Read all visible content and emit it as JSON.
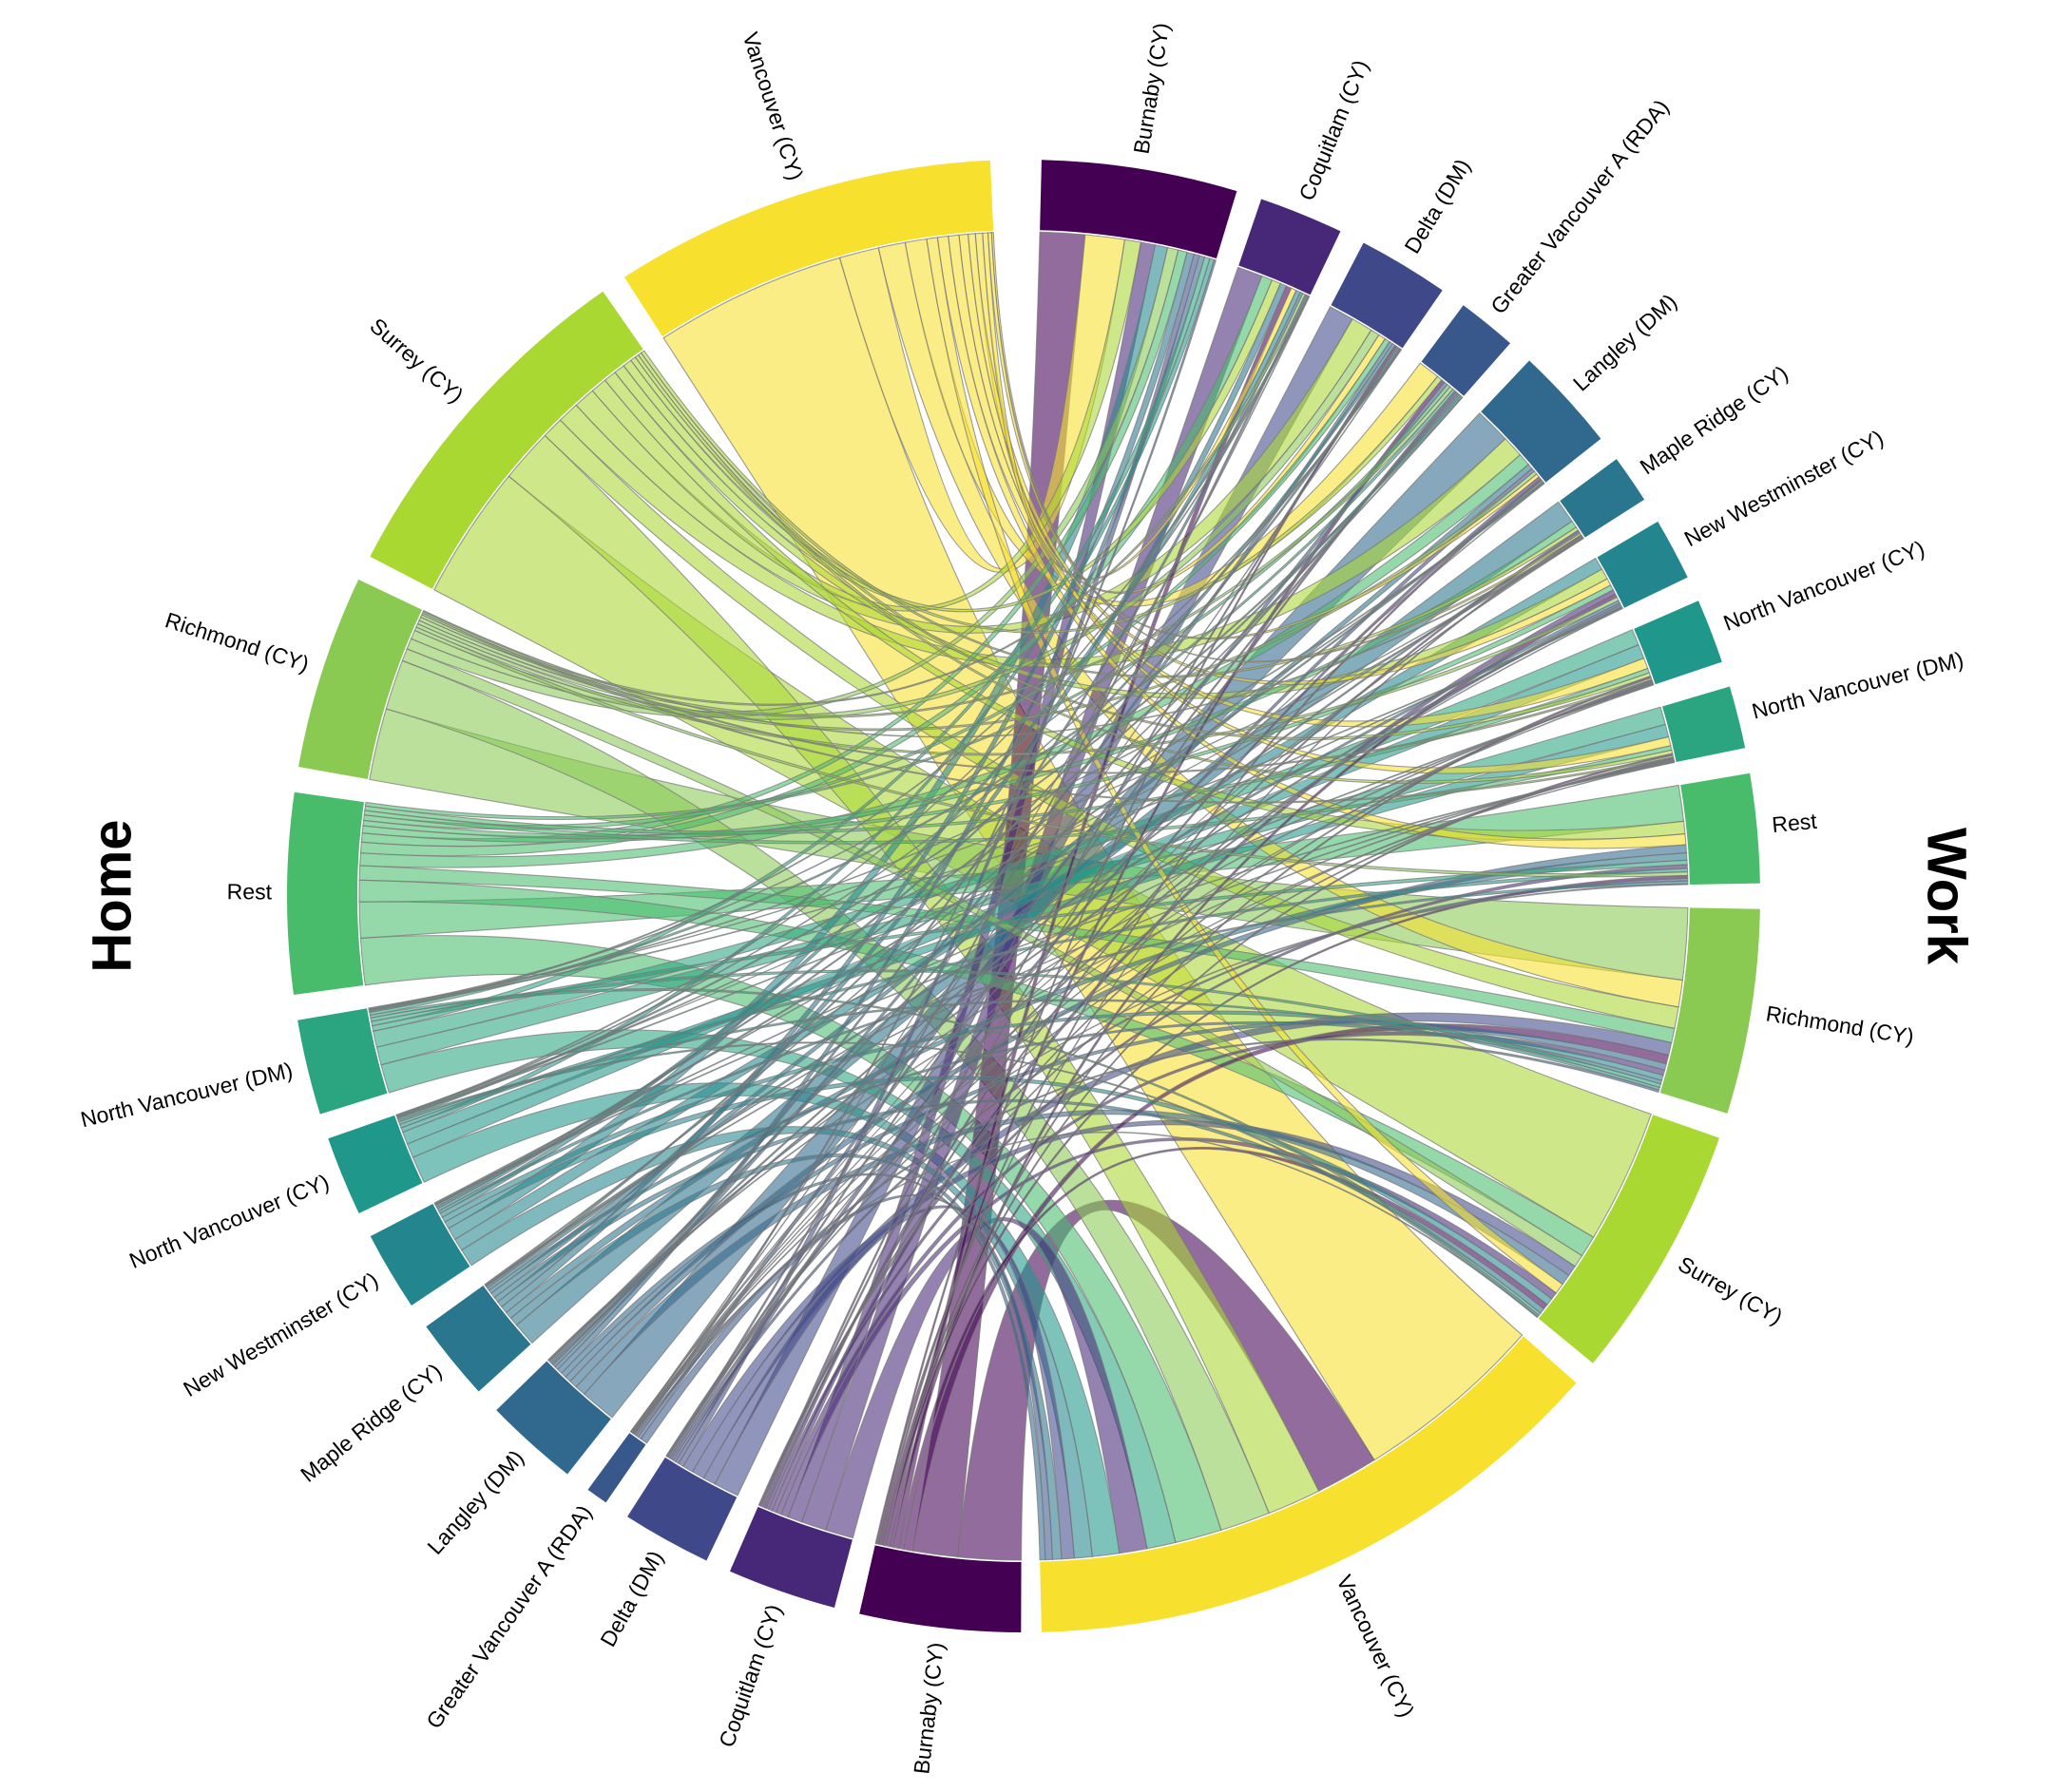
{
  "figure": {
    "left_title": "Home",
    "right_title": "Work",
    "background": "#ffffff"
  },
  "chart_data": {
    "type": "chord",
    "left_axis_label": "Home",
    "right_axis_label": "Work",
    "legend_position": "none",
    "value_scale": "relative flow strength (estimated from ribbon widths)",
    "sectors": [
      "Burnaby (CY)",
      "Coquitlam (CY)",
      "Delta (DM)",
      "Greater Vancouver A (RDA)",
      "Langley (DM)",
      "Maple Ridge (CY)",
      "New Westminster (CY)",
      "North Vancouver (CY)",
      "North Vancouver (DM)",
      "Rest",
      "Richmond (CY)",
      "Surrey (CY)",
      "Vancouver (CY)"
    ],
    "sector_colors": [
      "#440154",
      "#472878",
      "#3f4889",
      "#38588c",
      "#31688e",
      "#2a768e",
      "#23868e",
      "#1f978b",
      "#2aa580",
      "#49bc6c",
      "#8aca52",
      "#aad833",
      "#f8e02e"
    ],
    "home_order_top_to_bottom": [
      "Vancouver (CY)",
      "Surrey (CY)",
      "Richmond (CY)",
      "Rest",
      "North Vancouver (DM)",
      "North Vancouver (CY)",
      "New Westminster (CY)",
      "Maple Ridge (CY)",
      "Langley (DM)",
      "Greater Vancouver A (RDA)",
      "Delta (DM)",
      "Coquitlam (CY)",
      "Burnaby (CY)"
    ],
    "work_order_top_to_bottom": [
      "Burnaby (CY)",
      "Coquitlam (CY)",
      "Delta (DM)",
      "Greater Vancouver A (RDA)",
      "Langley (DM)",
      "Maple Ridge (CY)",
      "New Westminster (CY)",
      "North Vancouver (CY)",
      "North Vancouver (DM)",
      "Rest",
      "Richmond (CY)",
      "Surrey (CY)",
      "Vancouver (CY)"
    ],
    "matrix_home_rows_work_cols": [
      [
        25,
        3,
        1,
        2,
        1,
        0.5,
        2,
        1,
        1,
        1.5,
        5,
        3,
        35
      ],
      [
        8,
        14,
        1,
        1,
        1.5,
        1,
        2.5,
        0.8,
        0.7,
        2,
        3,
        4,
        15.5
      ],
      [
        3,
        1,
        14,
        1,
        2,
        0.3,
        1.2,
        0.5,
        0.5,
        1.5,
        7,
        6,
        7
      ],
      [
        1,
        0.3,
        0.3,
        2,
        0.2,
        0.1,
        0.3,
        0.3,
        0.3,
        0.5,
        1.2,
        0.5,
        4
      ],
      [
        3,
        1.5,
        2,
        1,
        20,
        1,
        1,
        0.5,
        0.5,
        4.5,
        3.5,
        6,
        3
      ],
      [
        4,
        3.5,
        1,
        0.5,
        3,
        13,
        1.5,
        0.5,
        0.5,
        4,
        2,
        3,
        5
      ],
      [
        7,
        2.5,
        1.5,
        1,
        1,
        0.5,
        7,
        0.5,
        0.5,
        1.5,
        3,
        4,
        10
      ],
      [
        2.5,
        0.5,
        0.5,
        1,
        0.5,
        0.2,
        0.5,
        8,
        7,
        2,
        1.5,
        1,
        15
      ],
      [
        3,
        0.7,
        0.5,
        1.5,
        0.5,
        0.3,
        0.5,
        9,
        10,
        2.5,
        2,
        1.5,
        16
      ],
      [
        5,
        6,
        3,
        2,
        7,
        4,
        3,
        2.5,
        2.5,
        20,
        8,
        12,
        26
      ],
      [
        6,
        1.5,
        5,
        2,
        2,
        0.5,
        2,
        1,
        1,
        2,
        40,
        7,
        28
      ],
      [
        9,
        5,
        12,
        3,
        12,
        2,
        6,
        2,
        2,
        7,
        12,
        75,
        30
      ],
      [
        22,
        3,
        4,
        12,
        2,
        1,
        4,
        6,
        5,
        6,
        15,
        6,
        107
      ]
    ],
    "ribbon_style": {
      "fill_opacity": 0.58,
      "stroke_color": "#7a7a7a",
      "stroke_width": 1.1
    }
  }
}
